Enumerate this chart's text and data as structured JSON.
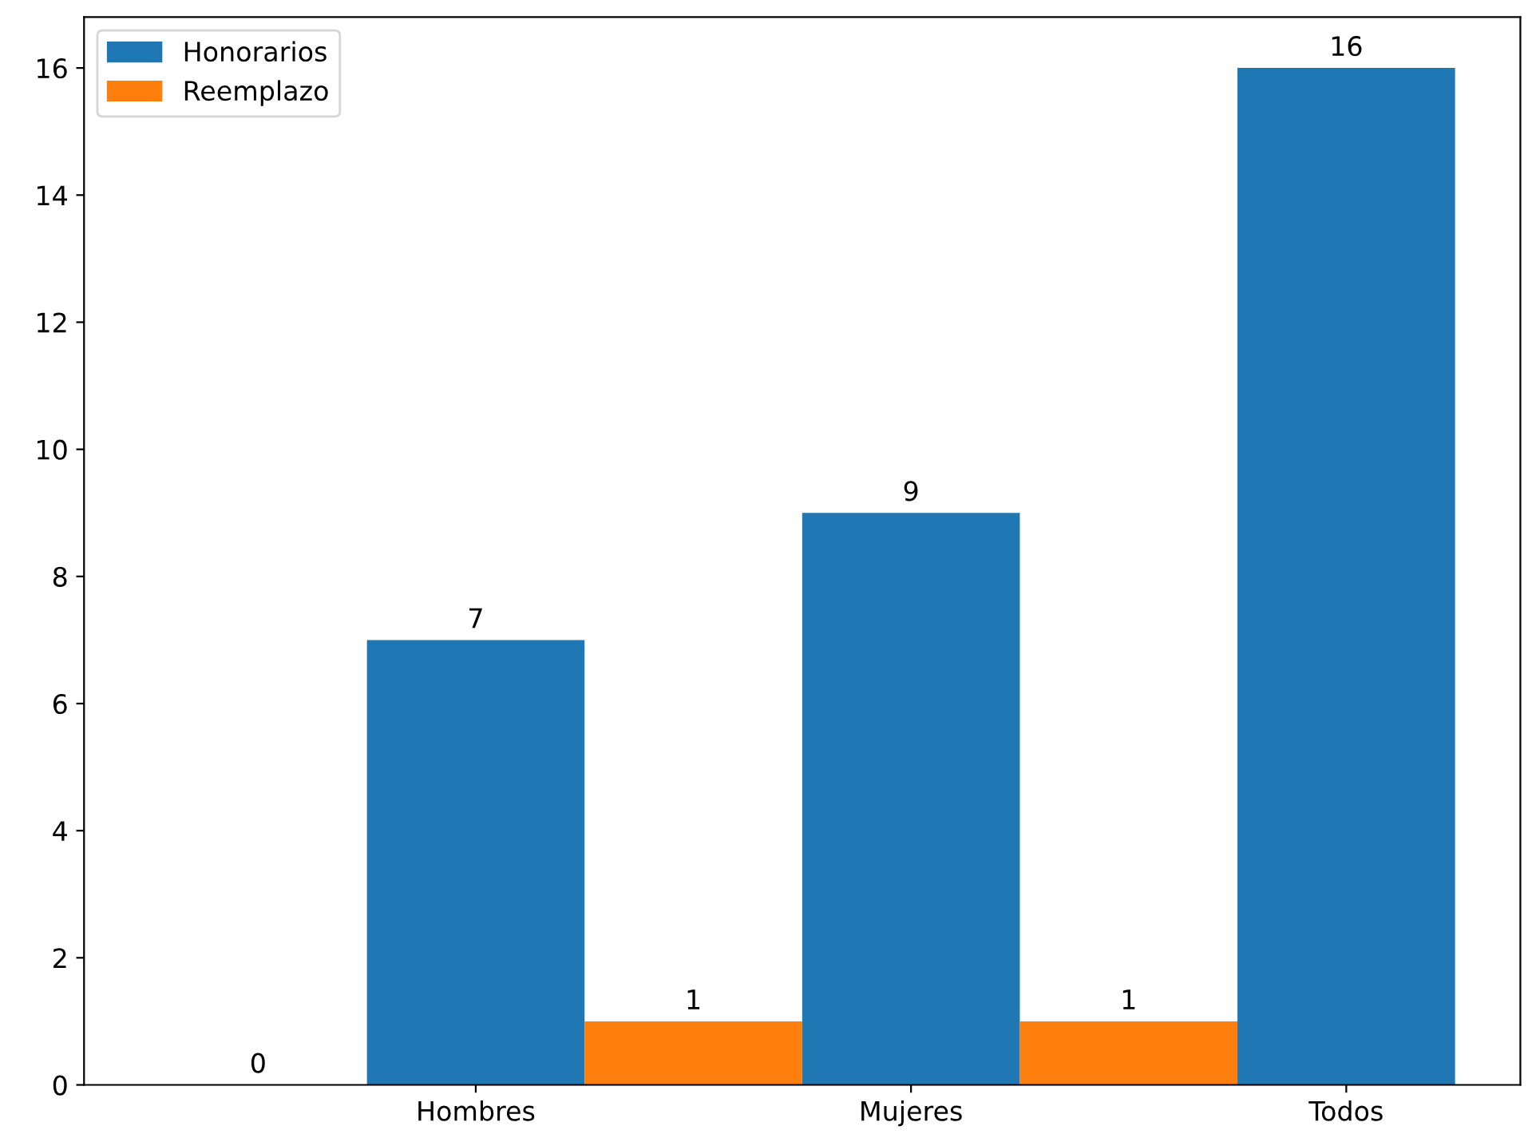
{
  "chart_data": {
    "type": "bar",
    "categories": [
      null,
      "Hombres",
      null,
      "Mujeres",
      null,
      "Todos"
    ],
    "series": [
      {
        "name": "Honorarios",
        "color": "#1f77b4",
        "values": [
          null,
          7,
          null,
          9,
          null,
          16
        ]
      },
      {
        "name": "Reemplazo",
        "color": "#ff7f0e",
        "values": [
          0,
          null,
          1,
          null,
          1,
          null
        ]
      }
    ],
    "ylim": [
      0,
      16.8
    ],
    "yticks": [
      0,
      2,
      4,
      6,
      8,
      10,
      12,
      14,
      16
    ],
    "data_labels": true,
    "legend": "top left",
    "grid": false
  }
}
